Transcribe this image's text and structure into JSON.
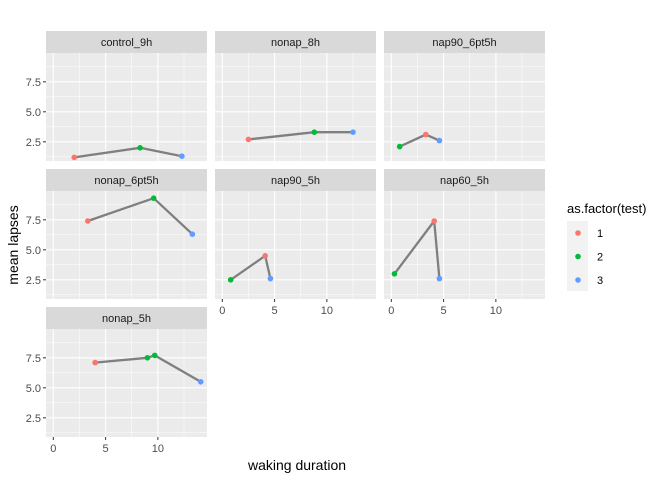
{
  "chart_data": {
    "type": "line",
    "xlabel": "waking duration",
    "ylabel": "mean lapses",
    "xlim": [
      -0.7,
      14.7
    ],
    "ylim": [
      0.9,
      9.9
    ],
    "x_ticks": [
      0,
      5,
      10
    ],
    "y_ticks": [
      2.5,
      5.0,
      7.5
    ],
    "x_tick_labels": [
      "0",
      "5",
      "10"
    ],
    "y_tick_labels": [
      "2.5",
      "5.0",
      "7.5"
    ],
    "grid": true,
    "legend": {
      "title": "as.factor(test)",
      "position": "right",
      "entries": [
        {
          "label": "1",
          "color": "#F8766D"
        },
        {
          "label": "2",
          "color": "#00BA38"
        },
        {
          "label": "3",
          "color": "#619CFF"
        }
      ]
    },
    "line_color": "#7f7f7f",
    "panel_background": "#ebebeb",
    "strip_background": "#d9d9d9",
    "panels": [
      {
        "name": "control_9h",
        "points": [
          {
            "x": 2.0,
            "y": 1.2,
            "test": 1
          },
          {
            "x": 8.3,
            "y": 2.0,
            "test": 2
          },
          {
            "x": 12.3,
            "y": 1.3,
            "test": 3
          }
        ]
      },
      {
        "name": "nonap_8h",
        "points": [
          {
            "x": 2.5,
            "y": 2.7,
            "test": 1
          },
          {
            "x": 8.8,
            "y": 3.3,
            "test": 2
          },
          {
            "x": 12.5,
            "y": 3.3,
            "test": 3
          }
        ]
      },
      {
        "name": "nap90_6pt5h",
        "points": [
          {
            "x": 0.8,
            "y": 2.1,
            "test": 2
          },
          {
            "x": 3.3,
            "y": 3.1,
            "test": 1
          },
          {
            "x": 4.6,
            "y": 2.6,
            "test": 3
          }
        ]
      },
      {
        "name": "nonap_6pt5h",
        "points": [
          {
            "x": 3.3,
            "y": 7.4,
            "test": 1
          },
          {
            "x": 9.6,
            "y": 9.3,
            "test": 2
          },
          {
            "x": 13.3,
            "y": 6.3,
            "test": 3
          }
        ]
      },
      {
        "name": "nap90_5h",
        "points": [
          {
            "x": 0.8,
            "y": 2.5,
            "test": 2
          },
          {
            "x": 4.1,
            "y": 4.5,
            "test": 1
          },
          {
            "x": 4.6,
            "y": 2.6,
            "test": 3
          }
        ]
      },
      {
        "name": "nap60_5h",
        "points": [
          {
            "x": 0.3,
            "y": 3.0,
            "test": 2
          },
          {
            "x": 4.1,
            "y": 7.4,
            "test": 1
          },
          {
            "x": 4.6,
            "y": 2.6,
            "test": 3
          }
        ]
      },
      {
        "name": "nonap_5h",
        "points": [
          {
            "x": 4.0,
            "y": 7.1,
            "test": 1
          },
          {
            "x": 9.0,
            "y": 7.5,
            "test": 2
          },
          {
            "x": 9.7,
            "y": 7.7,
            "test": 2
          },
          {
            "x": 14.1,
            "y": 5.5,
            "test": 3
          }
        ]
      }
    ]
  }
}
